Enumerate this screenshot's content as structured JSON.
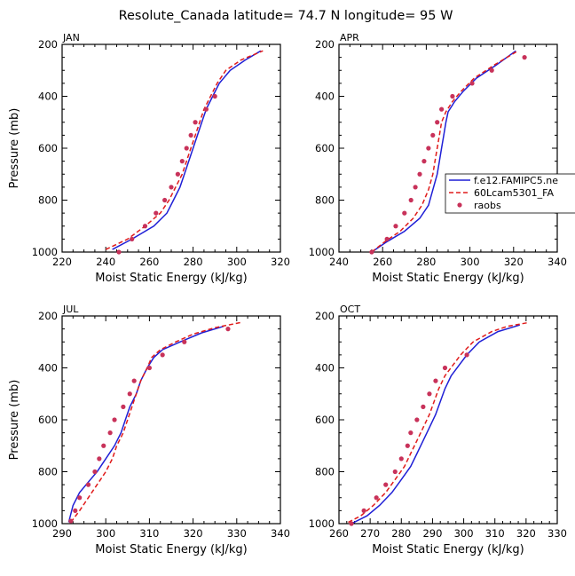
{
  "title": "Resolute_Canada   latitude= 74.7 N longitude= 95 W",
  "legend": {
    "entries": [
      {
        "label": "f.e12.FAMIPC5.ne",
        "color": "#1f1fd6",
        "style": "solid"
      },
      {
        "label": "60Lcam5301_FA",
        "color": "#e01b1b",
        "style": "dashed"
      },
      {
        "label": "raobs",
        "color": "#c8325a",
        "style": "dots"
      }
    ]
  },
  "chart_data": [
    {
      "type": "line",
      "panel": "JAN",
      "xlabel": "Moist Static Energy (kJ/kg)",
      "ylabel": "Pressure (mb)",
      "xlim": [
        220,
        320
      ],
      "ylim": [
        1000,
        200
      ],
      "xticks": [
        "220",
        "240",
        "260",
        "280",
        "300",
        "320"
      ],
      "yticks": [
        "200",
        "400",
        "600",
        "800",
        "1000"
      ],
      "series": [
        {
          "name": "f.e12.FAMIPC5.ne",
          "color": "#1f1fd6",
          "points": [
            [
              243,
              990
            ],
            [
              252,
              950
            ],
            [
              262,
              900
            ],
            [
              268,
              850
            ],
            [
              271,
              800
            ],
            [
              274,
              750
            ],
            [
              276,
              700
            ],
            [
              278,
              650
            ],
            [
              280,
              600
            ],
            [
              282,
              550
            ],
            [
              284,
              500
            ],
            [
              286,
              450
            ],
            [
              289,
              400
            ],
            [
              292,
              350
            ],
            [
              297,
              300
            ],
            [
              304,
              260
            ],
            [
              311,
              225
            ]
          ]
        },
        {
          "name": "60Lcam5301_FA",
          "color": "#e01b1b",
          "points": [
            [
              240,
              990
            ],
            [
              250,
              950
            ],
            [
              258,
              900
            ],
            [
              265,
              850
            ],
            [
              269,
              800
            ],
            [
              272,
              750
            ],
            [
              275,
              700
            ],
            [
              277,
              650
            ],
            [
              279,
              600
            ],
            [
              281,
              550
            ],
            [
              283,
              500
            ],
            [
              285,
              450
            ],
            [
              288,
              400
            ],
            [
              291,
              350
            ],
            [
              295,
              300
            ],
            [
              302,
              260
            ],
            [
              312,
              225
            ]
          ]
        },
        {
          "name": "raobs",
          "color": "#c8325a",
          "points": [
            [
              246,
              1000
            ],
            [
              252,
              950
            ],
            [
              258,
              900
            ],
            [
              263,
              850
            ],
            [
              267,
              800
            ],
            [
              270,
              750
            ],
            [
              273,
              700
            ],
            [
              275,
              650
            ],
            [
              277,
              600
            ],
            [
              279,
              550
            ],
            [
              281,
              500
            ],
            [
              286,
              450
            ],
            [
              290,
              400
            ]
          ]
        }
      ]
    },
    {
      "type": "line",
      "panel": "APR",
      "xlabel": "Moist Static Energy (kJ/kg)",
      "ylabel": "",
      "xlim": [
        240,
        340
      ],
      "ylim": [
        1000,
        200
      ],
      "xticks": [
        "240",
        "260",
        "280",
        "300",
        "320",
        "340"
      ],
      "yticks": [
        "200",
        "400",
        "600",
        "800",
        "1000"
      ],
      "series": [
        {
          "name": "f.e12.FAMIPC5.ne",
          "color": "#1f1fd6",
          "points": [
            [
              255,
              1000
            ],
            [
              262,
              960
            ],
            [
              270,
              920
            ],
            [
              277,
              870
            ],
            [
              281,
              820
            ],
            [
              283,
              760
            ],
            [
              285,
              700
            ],
            [
              286,
              650
            ],
            [
              287,
              600
            ],
            [
              288,
              550
            ],
            [
              289,
              500
            ],
            [
              290,
              460
            ],
            [
              293,
              420
            ],
            [
              297,
              380
            ],
            [
              303,
              330
            ],
            [
              312,
              280
            ],
            [
              321,
              225
            ]
          ]
        },
        {
          "name": "60Lcam5301_FA",
          "color": "#e01b1b",
          "points": [
            [
              255,
              1000
            ],
            [
              261,
              960
            ],
            [
              268,
              920
            ],
            [
              274,
              870
            ],
            [
              278,
              820
            ],
            [
              281,
              760
            ],
            [
              283,
              700
            ],
            [
              284,
              650
            ],
            [
              285,
              600
            ],
            [
              286,
              550
            ],
            [
              287,
              500
            ],
            [
              289,
              460
            ],
            [
              292,
              420
            ],
            [
              296,
              380
            ],
            [
              302,
              330
            ],
            [
              311,
              280
            ],
            [
              322,
              225
            ]
          ]
        },
        {
          "name": "raobs",
          "color": "#c8325a",
          "points": [
            [
              255,
              1000
            ],
            [
              262,
              950
            ],
            [
              266,
              900
            ],
            [
              270,
              850
            ],
            [
              273,
              800
            ],
            [
              275,
              750
            ],
            [
              277,
              700
            ],
            [
              279,
              650
            ],
            [
              281,
              600
            ],
            [
              283,
              550
            ],
            [
              285,
              500
            ],
            [
              287,
              450
            ],
            [
              292,
              400
            ],
            [
              301,
              350
            ],
            [
              310,
              300
            ],
            [
              325,
              250
            ]
          ]
        }
      ]
    },
    {
      "type": "line",
      "panel": "JUL",
      "xlabel": "Moist Static Energy (kJ/kg)",
      "ylabel": "Pressure (mb)",
      "xlim": [
        290,
        340
      ],
      "ylim": [
        1000,
        200
      ],
      "xticks": [
        "290",
        "300",
        "310",
        "320",
        "330",
        "340"
      ],
      "yticks": [
        "200",
        "400",
        "600",
        "800",
        "1000"
      ],
      "series": [
        {
          "name": "f.e12.FAMIPC5.ne",
          "color": "#1f1fd6",
          "points": [
            [
              291.5,
              995
            ],
            [
              292.5,
              930
            ],
            [
              294,
              880
            ],
            [
              296,
              840
            ],
            [
              298,
              800
            ],
            [
              300,
              750
            ],
            [
              302,
              700
            ],
            [
              303.5,
              650
            ],
            [
              304.5,
              600
            ],
            [
              305.5,
              550
            ],
            [
              307,
              500
            ],
            [
              308,
              450
            ],
            [
              309.5,
              400
            ],
            [
              311,
              360
            ],
            [
              313,
              330
            ],
            [
              317,
              300
            ],
            [
              322,
              265
            ],
            [
              327,
              240
            ]
          ]
        },
        {
          "name": "60Lcam5301_FA",
          "color": "#e01b1b",
          "points": [
            [
              292,
              995
            ],
            [
              294,
              950
            ],
            [
              296,
              900
            ],
            [
              298,
              850
            ],
            [
              300,
              800
            ],
            [
              301.5,
              750
            ],
            [
              302.5,
              700
            ],
            [
              304,
              650
            ],
            [
              305,
              600
            ],
            [
              306,
              550
            ],
            [
              307,
              500
            ],
            [
              308,
              450
            ],
            [
              309.5,
              400
            ],
            [
              310.5,
              360
            ],
            [
              312.5,
              330
            ],
            [
              316,
              300
            ],
            [
              320,
              270
            ],
            [
              325,
              245
            ],
            [
              331,
              225
            ]
          ]
        },
        {
          "name": "raobs",
          "color": "#c8325a",
          "points": [
            [
              292,
              990
            ],
            [
              293,
              950
            ],
            [
              294,
              900
            ],
            [
              296,
              850
            ],
            [
              297.5,
              800
            ],
            [
              298.5,
              750
            ],
            [
              299.5,
              700
            ],
            [
              301,
              650
            ],
            [
              302,
              600
            ],
            [
              304,
              550
            ],
            [
              305.5,
              500
            ],
            [
              306.5,
              450
            ],
            [
              310,
              400
            ],
            [
              313,
              350
            ],
            [
              318,
              300
            ],
            [
              328,
              250
            ]
          ]
        }
      ]
    },
    {
      "type": "line",
      "panel": "OCT",
      "xlabel": "Moist Static Energy (kJ/kg)",
      "ylabel": "",
      "xlim": [
        260,
        330
      ],
      "ylim": [
        1000,
        200
      ],
      "xticks": [
        "260",
        "270",
        "280",
        "290",
        "300",
        "310",
        "320",
        "330"
      ],
      "yticks": [
        "200",
        "400",
        "600",
        "800",
        "1000"
      ],
      "series": [
        {
          "name": "f.e12.FAMIPC5.ne",
          "color": "#1f1fd6",
          "points": [
            [
              264,
              1000
            ],
            [
              269,
              970
            ],
            [
              273,
              930
            ],
            [
              277,
              880
            ],
            [
              280,
              830
            ],
            [
              283,
              780
            ],
            [
              285,
              730
            ],
            [
              287,
              680
            ],
            [
              289,
              630
            ],
            [
              291,
              580
            ],
            [
              292.5,
              530
            ],
            [
              294,
              480
            ],
            [
              296,
              430
            ],
            [
              298.5,
              390
            ],
            [
              301,
              350
            ],
            [
              305,
              300
            ],
            [
              311,
              260
            ],
            [
              318,
              235
            ]
          ]
        },
        {
          "name": "60Lcam5301_FA",
          "color": "#e01b1b",
          "points": [
            [
              263,
              995
            ],
            [
              267,
              970
            ],
            [
              271,
              930
            ],
            [
              275,
              880
            ],
            [
              278,
              830
            ],
            [
              281,
              780
            ],
            [
              283,
              730
            ],
            [
              285,
              680
            ],
            [
              287,
              630
            ],
            [
              289,
              580
            ],
            [
              290.5,
              530
            ],
            [
              292,
              480
            ],
            [
              294,
              430
            ],
            [
              296.5,
              390
            ],
            [
              299,
              350
            ],
            [
              303,
              300
            ],
            [
              309,
              260
            ],
            [
              314,
              240
            ],
            [
              321,
              225
            ]
          ]
        },
        {
          "name": "raobs",
          "color": "#c8325a",
          "points": [
            [
              264,
              1000
            ],
            [
              268,
              950
            ],
            [
              272,
              900
            ],
            [
              275,
              850
            ],
            [
              278,
              800
            ],
            [
              280,
              750
            ],
            [
              282,
              700
            ],
            [
              283,
              650
            ],
            [
              285,
              600
            ],
            [
              287,
              550
            ],
            [
              289,
              500
            ],
            [
              291,
              450
            ],
            [
              294,
              400
            ],
            [
              301,
              350
            ]
          ]
        }
      ]
    }
  ]
}
